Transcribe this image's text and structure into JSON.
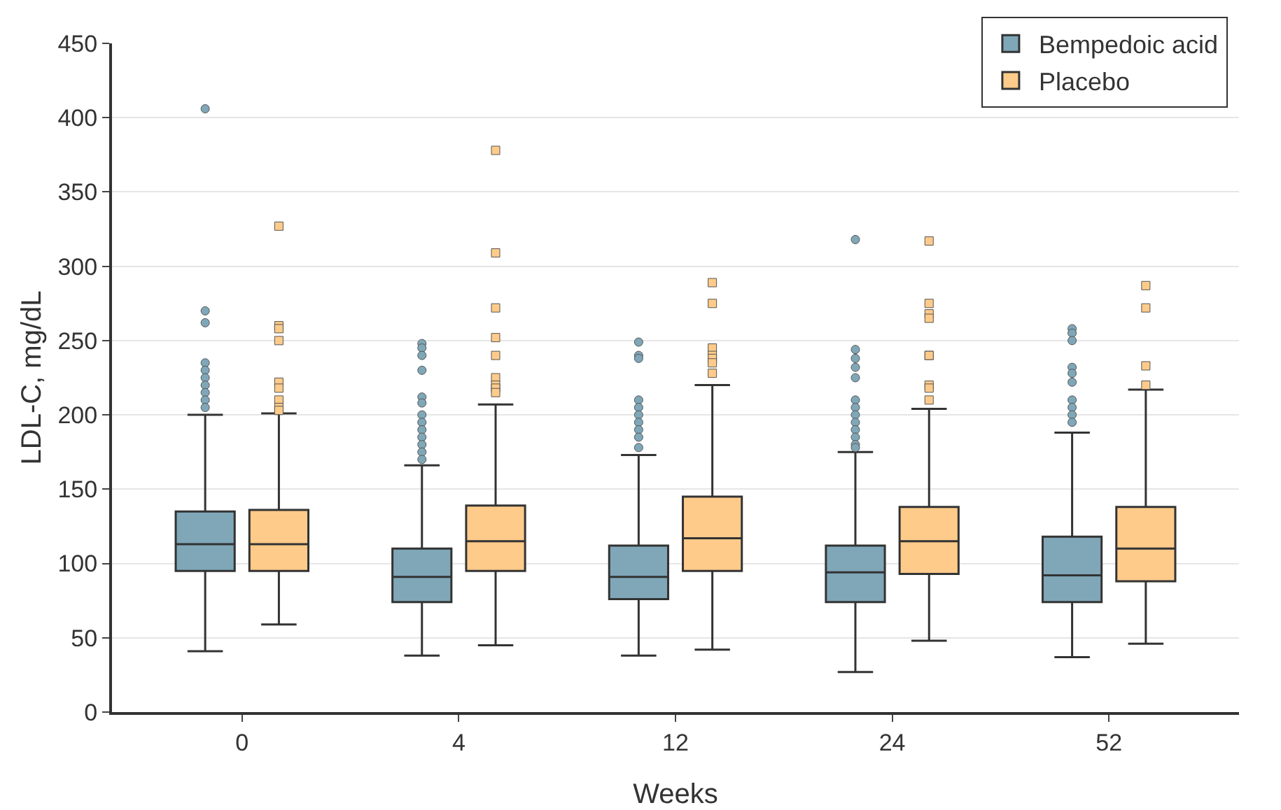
{
  "chart_data": {
    "type": "box",
    "xlabel": "Weeks",
    "ylabel": "LDL-C, mg/dL",
    "categories": [
      "0",
      "4",
      "12",
      "24",
      "52"
    ],
    "ylim": [
      0,
      450
    ],
    "yticks": [
      0,
      50,
      100,
      150,
      200,
      250,
      300,
      350,
      400,
      450
    ],
    "grid": "y",
    "legend": "top right",
    "series": [
      {
        "name": "Bempedoic acid",
        "color": "#7fa7b8",
        "marker": "circle",
        "boxes": [
          {
            "low": 41,
            "q1": 95,
            "median": 113,
            "q3": 135,
            "high": 200,
            "outliers": [
              406,
              270,
              262,
              235,
              230,
              225,
              220,
              215,
              210,
              205
            ]
          },
          {
            "low": 38,
            "q1": 74,
            "median": 91,
            "q3": 110,
            "high": 166,
            "outliers": [
              248,
              245,
              240,
              230,
              212,
              208,
              200,
              195,
              190,
              185,
              180,
              175,
              170
            ]
          },
          {
            "low": 38,
            "q1": 76,
            "median": 91,
            "q3": 112,
            "high": 173,
            "outliers": [
              249,
              240,
              238,
              210,
              205,
              200,
              195,
              190,
              185,
              178
            ]
          },
          {
            "low": 27,
            "q1": 74,
            "median": 94,
            "q3": 112,
            "high": 175,
            "outliers": [
              318,
              244,
              238,
              232,
              225,
              210,
              205,
              200,
              195,
              190,
              185,
              180,
              178
            ]
          },
          {
            "low": 37,
            "q1": 74,
            "median": 92,
            "q3": 118,
            "high": 188,
            "outliers": [
              258,
              255,
              250,
              232,
              228,
              222,
              210,
              205,
              200,
              195
            ]
          }
        ]
      },
      {
        "name": "Placebo",
        "color": "#fecb8a",
        "marker": "square",
        "boxes": [
          {
            "low": 59,
            "q1": 95,
            "median": 113,
            "q3": 136,
            "high": 201,
            "outliers": [
              327,
              260,
              258,
              250,
              222,
              218,
              210,
              205,
              203
            ]
          },
          {
            "low": 45,
            "q1": 95,
            "median": 115,
            "q3": 139,
            "high": 207,
            "outliers": [
              378,
              309,
              272,
              252,
              240,
              225,
              220,
              218,
              215
            ]
          },
          {
            "low": 42,
            "q1": 95,
            "median": 117,
            "q3": 145,
            "high": 220,
            "outliers": [
              289,
              275,
              245,
              240,
              238,
              235,
              228
            ]
          },
          {
            "low": 48,
            "q1": 93,
            "median": 115,
            "q3": 138,
            "high": 204,
            "outliers": [
              317,
              275,
              268,
              265,
              240,
              240,
              220,
              218,
              210
            ]
          },
          {
            "low": 46,
            "q1": 88,
            "median": 110,
            "q3": 138,
            "high": 217,
            "outliers": [
              287,
              272,
              233,
              220
            ]
          }
        ]
      }
    ]
  }
}
